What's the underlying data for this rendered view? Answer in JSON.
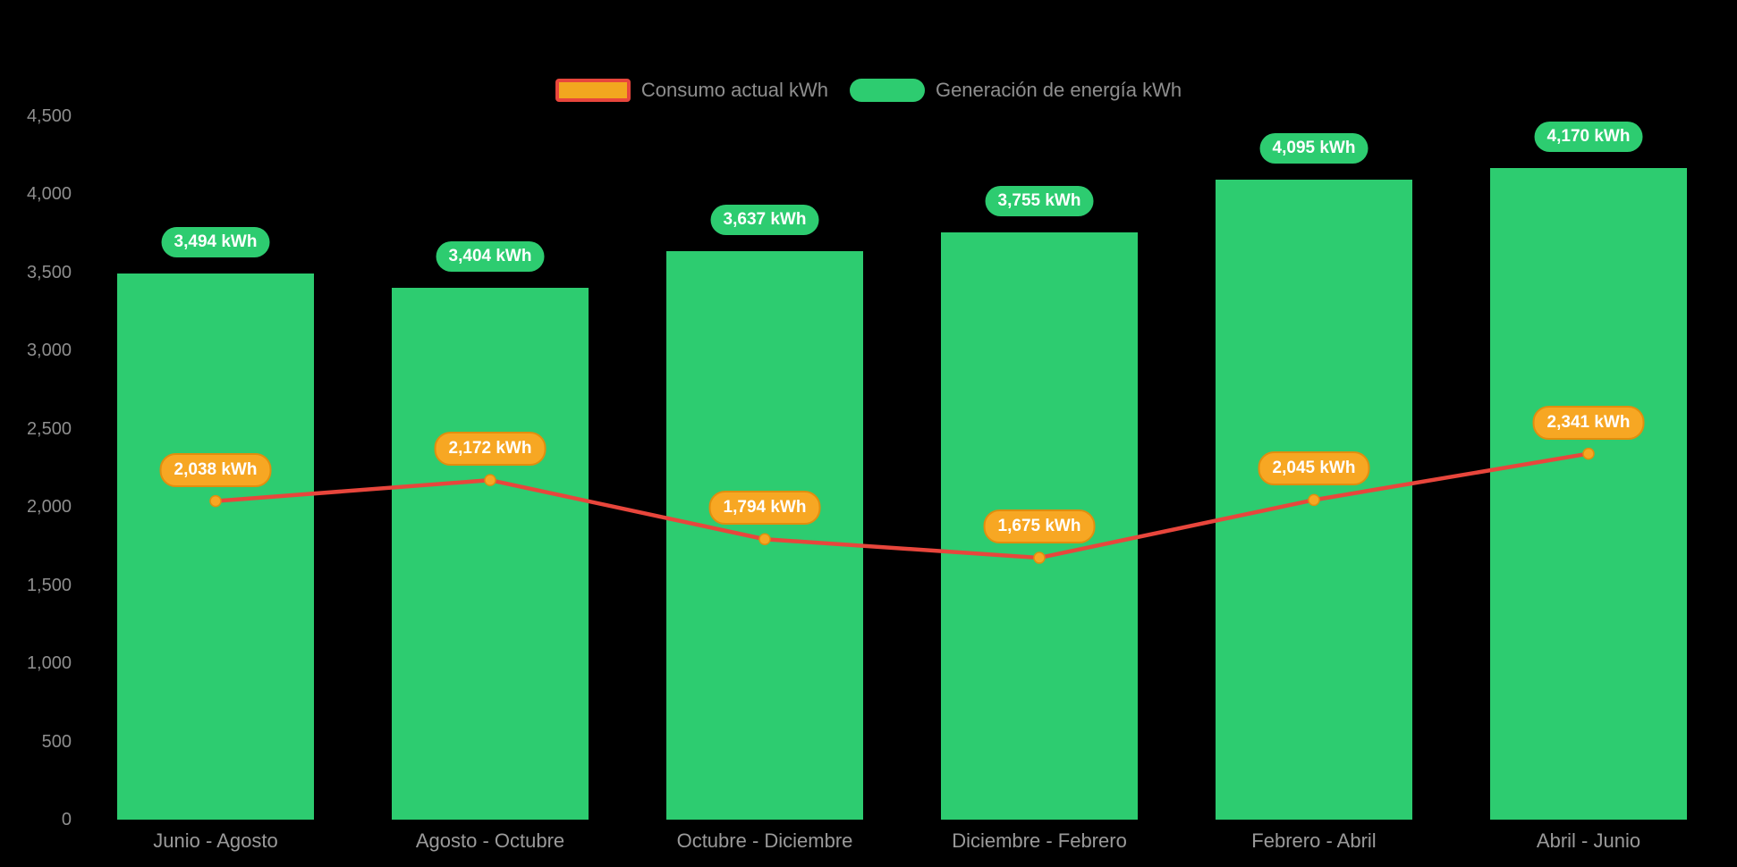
{
  "chart_data": {
    "type": "bar",
    "title": "",
    "categories": [
      "Junio - Agosto",
      "Agosto - Octubre",
      "Octubre - Diciembre",
      "Diciembre - Febrero",
      "Febrero - Abril",
      "Abril - Junio"
    ],
    "series": [
      {
        "name": "Consumo actual kWh",
        "type": "line",
        "values": [
          2038,
          2172,
          1794,
          1675,
          2045,
          2341
        ],
        "labels": [
          "2,038 kWh",
          "2,172 kWh",
          "1,794 kWh",
          "1,675 kWh",
          "2,045 kWh",
          "2,341 kWh"
        ],
        "line_color": "#e8463c",
        "point_color": "#f7a723",
        "label_bg": "#f7a723",
        "label_border": "#e18e0e"
      },
      {
        "name": "Generación de energía kWh",
        "type": "bar",
        "values": [
          3494,
          3404,
          3637,
          3755,
          4095,
          4170
        ],
        "labels": [
          "3,494 kWh",
          "3,404 kWh",
          "3,637 kWh",
          "3,755 kWh",
          "4,095 kWh",
          "4,170 kWh"
        ],
        "color": "#2dcc70"
      }
    ],
    "y_ticks": [
      {
        "value": 0,
        "label": "0"
      },
      {
        "value": 500,
        "label": "500"
      },
      {
        "value": 1000,
        "label": "1,000"
      },
      {
        "value": 1500,
        "label": "1,500"
      },
      {
        "value": 2000,
        "label": "2,000"
      },
      {
        "value": 2500,
        "label": "2,500"
      },
      {
        "value": 3000,
        "label": "3,000"
      },
      {
        "value": 3500,
        "label": "3,500"
      },
      {
        "value": 4000,
        "label": "4,000"
      },
      {
        "value": 4500,
        "label": "4,500"
      }
    ],
    "ylim": [
      0,
      4500
    ],
    "grid": false,
    "legend_position": "top",
    "background": "#000000",
    "axis_text_color": "#8e8e8e"
  }
}
